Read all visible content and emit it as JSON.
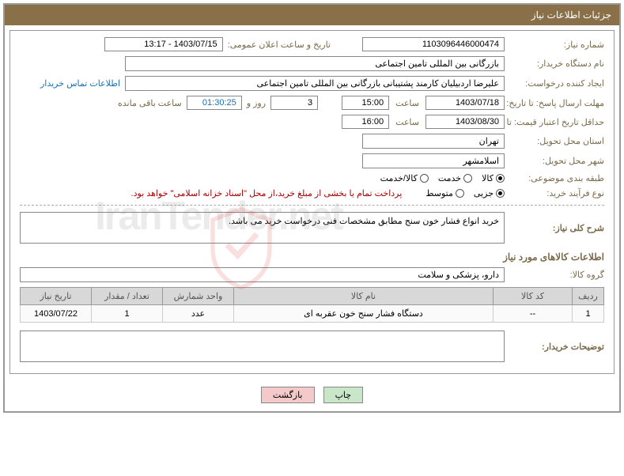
{
  "header": {
    "title": "جزئیات اطلاعات نیاز"
  },
  "fields": {
    "request_no_label": "شماره نیاز:",
    "request_no": "1103096446000474",
    "announce_label": "تاریخ و ساعت اعلان عمومی:",
    "announce_value": "1403/07/15 - 13:17",
    "buyer_org_label": "نام دستگاه خریدار:",
    "buyer_org": "بازرگانی بین المللی تامین اجتماعی",
    "creator_label": "ایجاد کننده درخواست:",
    "creator": "علیرضا اردبیلیان کارمند پشتیبانی بازرگانی بین المللی تامین اجتماعی",
    "contact_link": "اطلاعات تماس خریدار",
    "deadline_label": "مهلت ارسال پاسخ: تا تاریخ:",
    "deadline_date": "1403/07/18",
    "time_label": "ساعت",
    "deadline_time": "15:00",
    "days_remain": "3",
    "days_and": "روز و",
    "countdown": "01:30:25",
    "remain_suffix": "ساعت باقی مانده",
    "validity_label": "حداقل تاریخ اعتبار قیمت: تا تاریخ:",
    "validity_date": "1403/08/30",
    "validity_time": "16:00",
    "province_label": "استان محل تحویل:",
    "province": "تهران",
    "city_label": "شهر محل تحویل:",
    "city": "اسلامشهر",
    "category_label": "طبقه بندی موضوعی:",
    "process_label": "نوع فرآیند خرید:",
    "payment_note": "پرداخت تمام یا بخشی از مبلغ خرید،از محل \"اسناد خزانه اسلامی\" خواهد بود.",
    "desc_label": "شرح کلی نیاز:",
    "desc_text": "خرید انواع فشار خون سنج مطابق مشخصات فنی درخواست خرید می باشد.",
    "goods_info_title": "اطلاعات کالاهای مورد نیاز",
    "goods_group_label": "گروه کالا:",
    "goods_group": "دارو، پزشکی و سلامت",
    "buyer_notes_label": "توضیحات خریدار:",
    "buyer_notes": ""
  },
  "category_options": {
    "opt1": "کالا",
    "opt2": "خدمت",
    "opt3": "کالا/خدمت",
    "selected": 1
  },
  "process_options": {
    "opt1": "جزیی",
    "opt2": "متوسط",
    "selected": 1
  },
  "table": {
    "headers": {
      "row": "ردیف",
      "code": "کد کالا",
      "name": "نام کالا",
      "unit": "واحد شمارش",
      "qty": "تعداد / مقدار",
      "date": "تاریخ نیاز"
    },
    "rows": [
      {
        "row": "1",
        "code": "--",
        "name": "دستگاه فشار سنج خون عقربه ای",
        "unit": "عدد",
        "qty": "1",
        "date": "1403/07/22"
      }
    ]
  },
  "buttons": {
    "print": "چاپ",
    "back": "بازگشت"
  },
  "colors": {
    "header_bg": "#8a7049",
    "label_color": "#7a6a4a",
    "link_color": "#1b6fb5",
    "warn_color": "#a00"
  },
  "watermark": "IranTender.net"
}
